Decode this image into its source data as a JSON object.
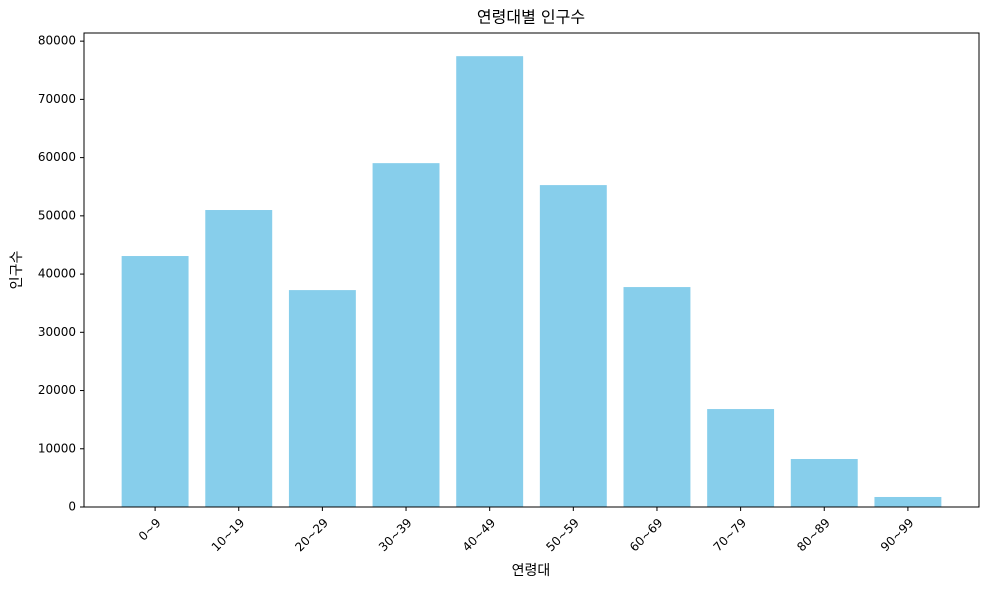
{
  "chart_data": {
    "type": "bar",
    "title": "연령대별 인구수",
    "x_label": "연령대",
    "y_label": "인구수",
    "categories": [
      "0~9",
      "10~19",
      "20~29",
      "30~39",
      "40~49",
      "50~59",
      "60~69",
      "70~79",
      "80~89",
      "90~99"
    ],
    "values": [
      43100,
      51000,
      37250,
      59050,
      77420,
      55280,
      37770,
      16820,
      8240,
      1720
    ],
    "color": "#87ceeb",
    "ylim": [
      0,
      81400
    ],
    "yticks": [
      0,
      10000,
      20000,
      30000,
      40000,
      50000,
      60000,
      70000,
      80000
    ],
    "grid": false
  }
}
